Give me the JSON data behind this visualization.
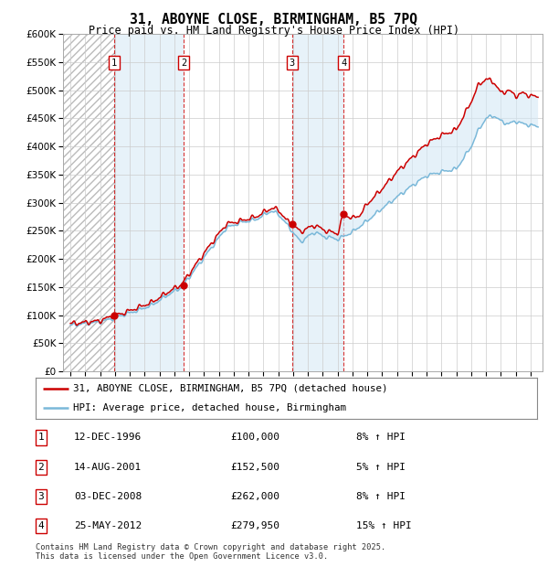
{
  "title": "31, ABOYNE CLOSE, BIRMINGHAM, B5 7PQ",
  "subtitle": "Price paid vs. HM Land Registry's House Price Index (HPI)",
  "ylim": [
    0,
    600000
  ],
  "ytick_values": [
    0,
    50000,
    100000,
    150000,
    200000,
    250000,
    300000,
    350000,
    400000,
    450000,
    500000,
    550000,
    600000
  ],
  "xlim_start": 1993.5,
  "xlim_end": 2025.8,
  "purchases": [
    {
      "label": "1",
      "year": 1996.95,
      "price": 100000
    },
    {
      "label": "2",
      "year": 2001.62,
      "price": 152500
    },
    {
      "label": "3",
      "year": 2008.92,
      "price": 262000
    },
    {
      "label": "4",
      "year": 2012.4,
      "price": 279950
    }
  ],
  "hpi_color": "#7ab8d9",
  "price_color": "#cc0000",
  "shade_color": "#d4e8f5",
  "legend_line1": "31, ABOYNE CLOSE, BIRMINGHAM, B5 7PQ (detached house)",
  "legend_line2": "HPI: Average price, detached house, Birmingham",
  "table_entries": [
    {
      "num": "1",
      "date": "12-DEC-1996",
      "price": "£100,000",
      "note": "8% ↑ HPI"
    },
    {
      "num": "2",
      "date": "14-AUG-2001",
      "price": "£152,500",
      "note": "5% ↑ HPI"
    },
    {
      "num": "3",
      "date": "03-DEC-2008",
      "price": "£262,000",
      "note": "8% ↑ HPI"
    },
    {
      "num": "4",
      "date": "25-MAY-2012",
      "price": "£279,950",
      "note": "15% ↑ HPI"
    }
  ],
  "footer": "Contains HM Land Registry data © Crown copyright and database right 2025.\nThis data is licensed under the Open Government Licence v3.0.",
  "background_color": "#ffffff",
  "grid_color": "#cccccc"
}
